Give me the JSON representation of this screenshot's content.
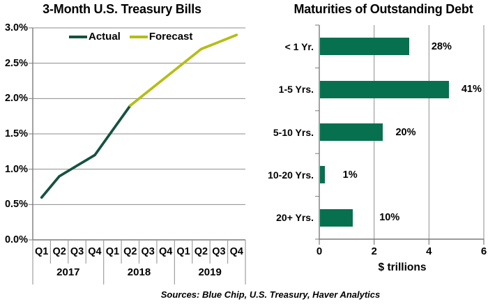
{
  "source_note": "Sources: Blue Chip, U.S. Treasury, Haver Analytics",
  "colors": {
    "actual": "#155240",
    "forecast": "#b4be14",
    "bar": "#07704f",
    "grid": "#8c8c8c",
    "axis": "#7a7a7a",
    "tick": "#a0a0a0",
    "text": "#000000"
  },
  "left_chart": {
    "title": "3-Month U.S. Treasury Bills",
    "legend": [
      {
        "label": "Actual",
        "color_key": "actual"
      },
      {
        "label": "Forecast",
        "color_key": "forecast"
      }
    ],
    "y_tick_labels": [
      "3.0%",
      "2.5%",
      "2.0%",
      "1.5%",
      "1.0%",
      "0.5%",
      "0.0%"
    ],
    "quarter_labels": [
      "Q1",
      "Q2",
      "Q3",
      "Q4",
      "Q1",
      "Q2",
      "Q3",
      "Q4",
      "Q1",
      "Q2",
      "Q3",
      "Q4"
    ],
    "year_labels": [
      "2017",
      "2018",
      "2019"
    ]
  },
  "right_chart": {
    "title": "Maturities of Outstanding Debt",
    "categories": [
      "< 1 Yr.",
      "1-5 Yrs.",
      "5-10 Yrs.",
      "10-20 Yrs.",
      "20+ Yrs."
    ],
    "percent_labels": [
      "28%",
      "41%",
      "20%",
      "1%",
      "10%"
    ],
    "x_tick_labels": [
      "0",
      "2",
      "4",
      "6"
    ],
    "xlabel": "$ trillions"
  },
  "chart_data": [
    {
      "type": "line",
      "title": "3-Month U.S. Treasury Bills",
      "x": [
        "2017 Q1",
        "2017 Q2",
        "2017 Q3",
        "2017 Q4",
        "2018 Q1",
        "2018 Q2",
        "2018 Q3",
        "2018 Q4",
        "2019 Q1",
        "2019 Q2",
        "2019 Q3",
        "2019 Q4"
      ],
      "series": [
        {
          "name": "Actual",
          "values": [
            0.6,
            0.9,
            1.05,
            1.2,
            1.55,
            1.9,
            null,
            null,
            null,
            null,
            null,
            null
          ]
        },
        {
          "name": "Forecast",
          "values": [
            null,
            null,
            null,
            null,
            null,
            1.9,
            2.1,
            2.3,
            2.5,
            2.7,
            2.8,
            2.9
          ]
        }
      ],
      "unit": "%",
      "ylim": [
        0,
        3
      ],
      "y_tick_step": 0.5,
      "grid": true,
      "legend_position": "top-inside"
    },
    {
      "type": "bar",
      "orientation": "horizontal",
      "title": "Maturities of Outstanding Debt",
      "categories": [
        "< 1 Yr.",
        "1-5 Yrs.",
        "5-10 Yrs.",
        "10-20 Yrs.",
        "20+ Yrs."
      ],
      "values": [
        3.25,
        4.7,
        2.3,
        0.17,
        1.2
      ],
      "data_labels": [
        "28%",
        "41%",
        "20%",
        "1%",
        "10%"
      ],
      "xlabel": "$ trillions",
      "xlim": [
        0,
        6
      ],
      "x_ticks": [
        0,
        2,
        4,
        6
      ],
      "grid": true
    }
  ]
}
